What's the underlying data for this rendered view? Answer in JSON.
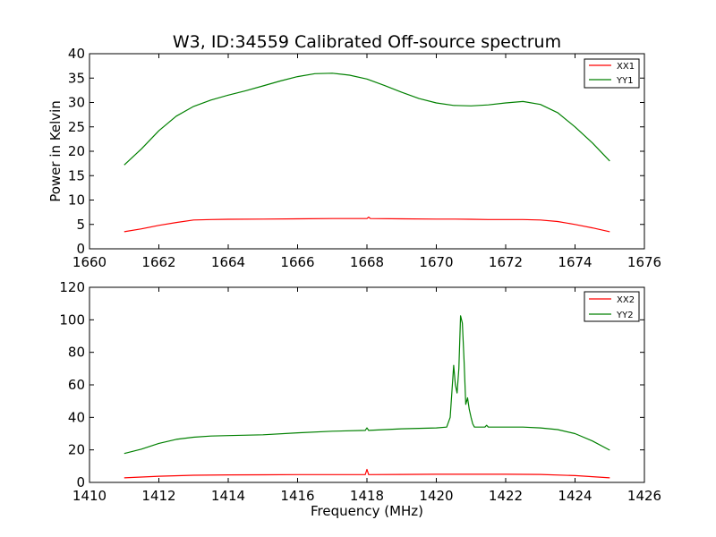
{
  "figure": {
    "title": "W3, ID:34559 Calibrated Off-source spectrum"
  },
  "chart_data": [
    {
      "type": "line",
      "title": "W3, ID:34559 Calibrated Off-source spectrum",
      "xlabel": "",
      "ylabel": "Power in Kelvin",
      "xlim": [
        1660,
        1676
      ],
      "ylim": [
        0,
        40
      ],
      "xticks": [
        1660,
        1662,
        1664,
        1666,
        1668,
        1670,
        1672,
        1674,
        1676
      ],
      "yticks": [
        0,
        5,
        10,
        15,
        20,
        25,
        30,
        35,
        40
      ],
      "legend": "top-right",
      "grid": false,
      "series": [
        {
          "name": "XX1",
          "color": "#ff0000",
          "x": [
            1661,
            1661.5,
            1662,
            1662.5,
            1663,
            1663.5,
            1664,
            1665,
            1666,
            1667,
            1668,
            1668.05,
            1668.1,
            1669,
            1670,
            1670.5,
            1671,
            1671.5,
            1672,
            1672.5,
            1673,
            1673.5,
            1674,
            1674.5,
            1675
          ],
          "y": [
            3.5,
            4.1,
            4.8,
            5.4,
            5.9,
            6.0,
            6.05,
            6.1,
            6.15,
            6.2,
            6.2,
            6.5,
            6.2,
            6.15,
            6.1,
            6.1,
            6.05,
            6.0,
            6.0,
            6.0,
            5.9,
            5.6,
            5.0,
            4.3,
            3.5
          ]
        },
        {
          "name": "YY1",
          "color": "#008000",
          "x": [
            1661,
            1661.5,
            1662,
            1662.5,
            1663,
            1663.5,
            1664,
            1664.5,
            1665,
            1665.5,
            1666,
            1666.5,
            1667,
            1667.5,
            1668,
            1668.5,
            1669,
            1669.5,
            1670,
            1670.5,
            1671,
            1671.5,
            1672,
            1672.5,
            1673,
            1673.5,
            1674,
            1674.5,
            1675
          ],
          "y": [
            17.2,
            20.5,
            24.2,
            27.2,
            29.2,
            30.5,
            31.5,
            32.4,
            33.4,
            34.4,
            35.3,
            35.9,
            36.0,
            35.6,
            34.8,
            33.5,
            32.1,
            30.8,
            29.9,
            29.4,
            29.3,
            29.5,
            29.9,
            30.2,
            29.6,
            27.9,
            25.0,
            21.7,
            18.0
          ]
        }
      ]
    },
    {
      "type": "line",
      "title": "",
      "xlabel": "Frequency (MHz)",
      "ylabel": "",
      "xlim": [
        1410,
        1426
      ],
      "ylim": [
        0,
        120
      ],
      "xticks": [
        1410,
        1412,
        1414,
        1416,
        1418,
        1420,
        1422,
        1424,
        1426
      ],
      "yticks": [
        0,
        20,
        40,
        60,
        80,
        100,
        120
      ],
      "legend": "top-right",
      "grid": false,
      "series": [
        {
          "name": "XX2",
          "color": "#ff0000",
          "x": [
            1411,
            1412,
            1413,
            1414,
            1415,
            1416,
            1417,
            1417.95,
            1418.0,
            1418.05,
            1419,
            1420,
            1421,
            1422,
            1423,
            1424,
            1425
          ],
          "y": [
            2.8,
            3.8,
            4.4,
            4.6,
            4.7,
            4.8,
            4.8,
            4.8,
            8.0,
            4.8,
            4.9,
            5.0,
            5.0,
            5.0,
            4.9,
            4.2,
            2.8
          ]
        },
        {
          "name": "YY2",
          "color": "#008000",
          "x": [
            1411,
            1411.5,
            1412,
            1412.5,
            1413,
            1413.5,
            1414,
            1415,
            1416,
            1417,
            1417.95,
            1418.0,
            1418.05,
            1419,
            1420,
            1420.3,
            1420.4,
            1420.5,
            1420.55,
            1420.6,
            1420.65,
            1420.7,
            1420.75,
            1420.8,
            1420.85,
            1420.9,
            1420.95,
            1421.0,
            1421.05,
            1421.1,
            1421.15,
            1421.2,
            1421.4,
            1421.45,
            1421.5,
            1422,
            1422.5,
            1423,
            1423.5,
            1424,
            1424.5,
            1425
          ],
          "y": [
            17.8,
            20.5,
            24.0,
            26.5,
            27.8,
            28.5,
            28.8,
            29.3,
            30.5,
            31.5,
            32.0,
            33.5,
            32.0,
            33.0,
            33.5,
            34.0,
            40.0,
            72.0,
            60.0,
            55.0,
            70.0,
            102.5,
            98.0,
            75.0,
            48.0,
            52.0,
            45.0,
            40.0,
            36.0,
            34.0,
            34.0,
            34.0,
            34.0,
            35.2,
            34.0,
            34.0,
            34.0,
            33.5,
            32.5,
            30.0,
            25.5,
            19.8
          ]
        }
      ]
    }
  ]
}
